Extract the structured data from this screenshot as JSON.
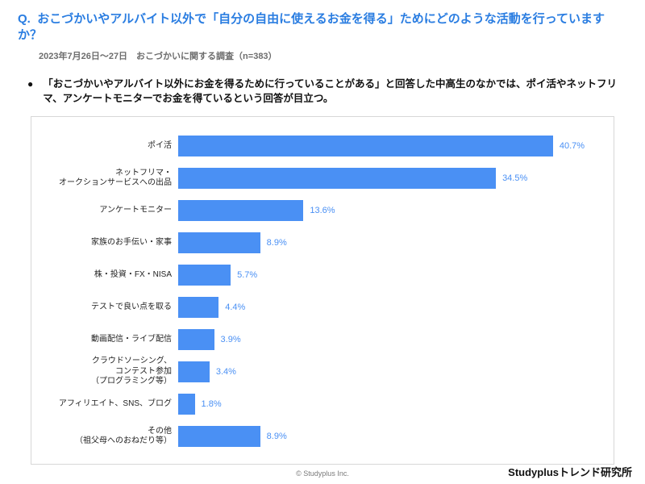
{
  "question": {
    "prefix": "Q.",
    "text": "おこづかいやアルバイト以外で「自分の自由に使えるお金を得る」ためにどのような活動を行っていますか？"
  },
  "subtitle": "2023年7月26日〜27日　おこづかいに関する調査（n=383）",
  "bullet": "「おこづかいやアルバイト以外にお金を得るために行っていることがある」と回答した中高生のなかでは、ポイ活やネットフリマ、アンケートモニターでお金を得ているという回答が目立つ。",
  "chart": {
    "type": "bar-horizontal",
    "bar_color": "#4a90f4",
    "value_color": "#4a90f4",
    "border_color": "#d7d7d7",
    "background_color": "#ffffff",
    "label_fontsize": 10,
    "value_fontsize": 11,
    "xmax": 45,
    "rows": [
      {
        "label": "ポイ活",
        "value": 40.7
      },
      {
        "label": "ネットフリマ・\nオークションサービスへの出品",
        "value": 34.5
      },
      {
        "label": "アンケートモニター",
        "value": 13.6
      },
      {
        "label": "家族のお手伝い・家事",
        "value": 8.9
      },
      {
        "label": "株・投資・FX・NISA",
        "value": 5.7
      },
      {
        "label": "テストで良い点を取る",
        "value": 4.4
      },
      {
        "label": "動画配信・ライブ配信",
        "value": 3.9
      },
      {
        "label": "クラウドソーシング、\nコンテスト参加\n（プログラミング等）",
        "value": 3.4
      },
      {
        "label": "アフィリエイト、SNS、ブログ",
        "value": 1.8
      },
      {
        "label": "その他\n（祖父母へのおねだり等）",
        "value": 8.9
      }
    ]
  },
  "footer": {
    "copyright": "© Studyplus Inc.",
    "brand": "Studyplusトレンド研究所"
  }
}
